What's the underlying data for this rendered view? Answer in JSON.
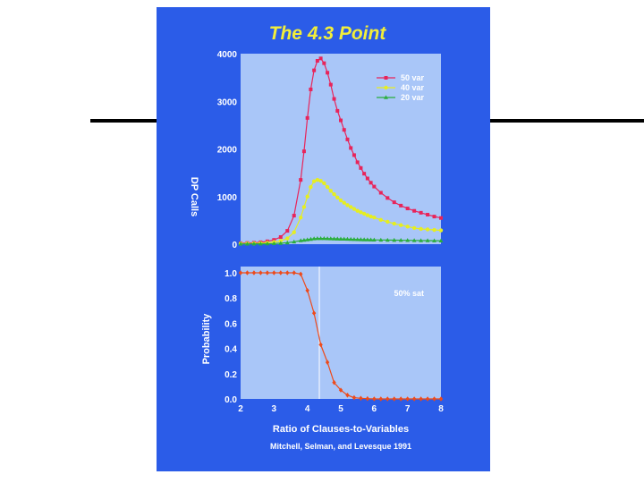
{
  "slide": {
    "title": "The 4.3 Point",
    "credit": "Mitchell, Selman, and Levesque 1991",
    "colors": {
      "background": "#ffffff",
      "panel": "#2b5ce8",
      "plot_bg": "#a9c6f8",
      "title": "#f2ee3a",
      "text": "#ffffff",
      "rule": "#000000"
    }
  },
  "chart_data": [
    {
      "type": "line",
      "title": "",
      "xlabel": "",
      "ylabel": "DP Calls",
      "xlim": [
        2,
        8
      ],
      "ylim": [
        0,
        4000
      ],
      "yticks": [
        "0",
        "1000",
        "2000",
        "3000",
        "4000"
      ],
      "legend_position": "top-right",
      "grid": false,
      "x": [
        2.0,
        2.2,
        2.4,
        2.6,
        2.8,
        3.0,
        3.2,
        3.4,
        3.6,
        3.8,
        3.9,
        4.0,
        4.1,
        4.2,
        4.3,
        4.4,
        4.5,
        4.6,
        4.7,
        4.8,
        4.9,
        5.0,
        5.1,
        5.2,
        5.3,
        5.4,
        5.5,
        5.6,
        5.7,
        5.8,
        5.9,
        6.0,
        6.2,
        6.4,
        6.6,
        6.8,
        7.0,
        7.2,
        7.4,
        7.6,
        7.8,
        8.0
      ],
      "series": [
        {
          "name": "50 var",
          "color": "#e8245a",
          "marker": "square",
          "values": [
            20,
            25,
            30,
            40,
            60,
            90,
            150,
            280,
            600,
            1350,
            1950,
            2650,
            3250,
            3650,
            3850,
            3900,
            3800,
            3600,
            3350,
            3050,
            2800,
            2600,
            2400,
            2200,
            2020,
            1870,
            1720,
            1600,
            1480,
            1380,
            1290,
            1210,
            1080,
            970,
            880,
            810,
            750,
            700,
            660,
            620,
            580,
            550
          ]
        },
        {
          "name": "40 var",
          "color": "#e6ee20",
          "marker": "circle",
          "values": [
            10,
            12,
            15,
            20,
            30,
            45,
            70,
            120,
            250,
            560,
            780,
            1000,
            1200,
            1320,
            1350,
            1330,
            1280,
            1200,
            1120,
            1050,
            980,
            920,
            870,
            820,
            780,
            740,
            700,
            670,
            640,
            610,
            580,
            560,
            510,
            470,
            430,
            400,
            370,
            340,
            320,
            310,
            300,
            290
          ]
        },
        {
          "name": "20 var",
          "color": "#2aae3c",
          "marker": "triangle",
          "values": [
            5,
            6,
            7,
            8,
            10,
            14,
            20,
            30,
            50,
            75,
            85,
            95,
            105,
            115,
            120,
            120,
            120,
            118,
            116,
            114,
            112,
            110,
            108,
            106,
            104,
            102,
            100,
            98,
            96,
            94,
            92,
            90,
            88,
            86,
            84,
            82,
            80,
            78,
            76,
            75,
            74,
            72
          ]
        }
      ]
    },
    {
      "type": "line",
      "title": "",
      "xlabel": "Ratio of Clauses-to-Variables",
      "ylabel": "Probability",
      "xlim": [
        2,
        8
      ],
      "ylim": [
        0,
        1
      ],
      "xticks": [
        "2",
        "3",
        "4",
        "5",
        "6",
        "7",
        "8"
      ],
      "yticks": [
        "0.0",
        "0.2",
        "0.4",
        "0.6",
        "0.8",
        "1.0"
      ],
      "grid": false,
      "annotation": {
        "label": "50% sat",
        "x": 4.3
      },
      "x": [
        2.0,
        2.2,
        2.4,
        2.6,
        2.8,
        3.0,
        3.2,
        3.4,
        3.6,
        3.8,
        4.0,
        4.2,
        4.4,
        4.6,
        4.8,
        5.0,
        5.2,
        5.4,
        5.6,
        5.8,
        6.0,
        6.2,
        6.4,
        6.6,
        6.8,
        7.0,
        7.2,
        7.4,
        7.6,
        7.8,
        8.0
      ],
      "series": [
        {
          "name": "",
          "color": "#ee4a1a",
          "marker": "diamond",
          "values": [
            1.0,
            1.0,
            1.0,
            1.0,
            1.0,
            1.0,
            1.0,
            1.0,
            1.0,
            0.99,
            0.86,
            0.68,
            0.43,
            0.29,
            0.13,
            0.07,
            0.03,
            0.01,
            0.005,
            0.002,
            0.0,
            0.0,
            0.0,
            0.0,
            0.0,
            0.0,
            0.0,
            0.0,
            0.0,
            0.0,
            0.0
          ]
        }
      ]
    }
  ]
}
